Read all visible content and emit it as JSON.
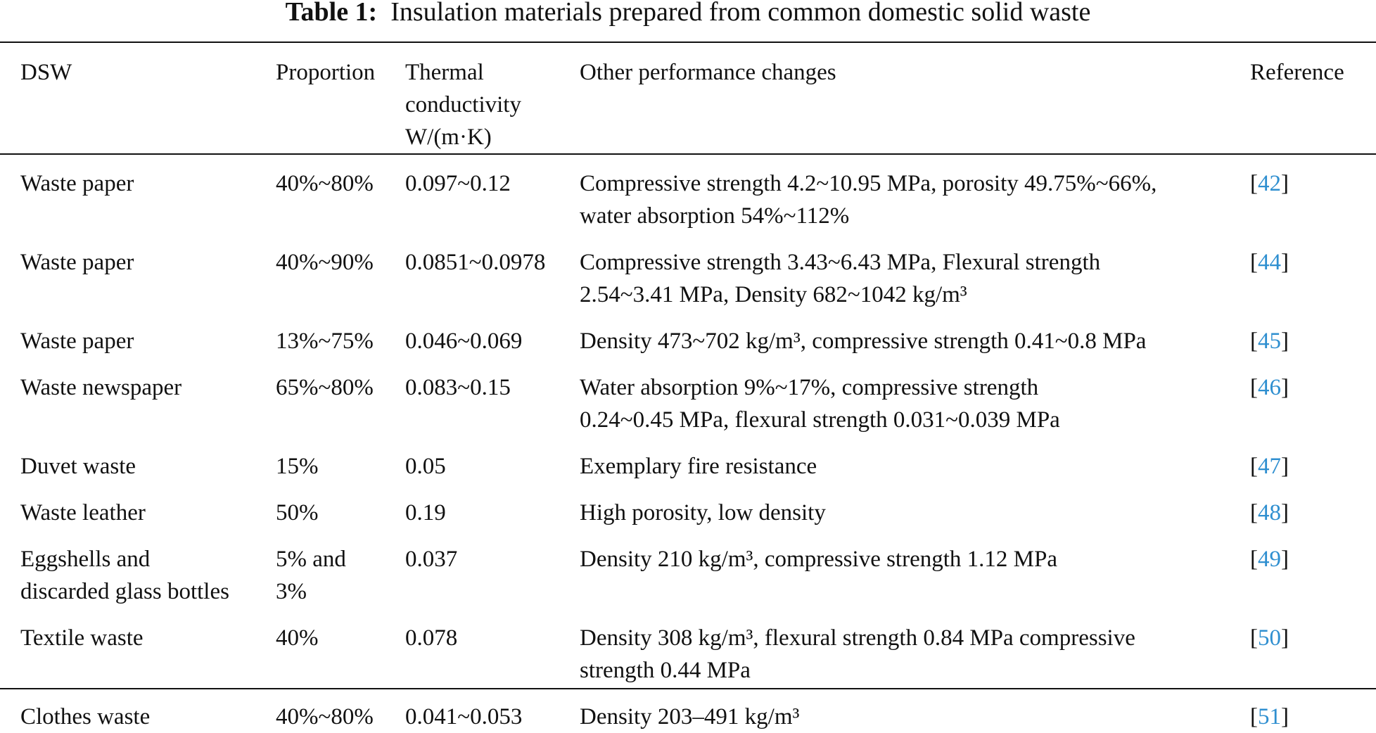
{
  "caption": {
    "label": "Table 1:",
    "title": "Insulation materials prepared from common domestic solid waste"
  },
  "headers": {
    "dsw": "DSW",
    "proportion": "Proportion",
    "thermal_1": "Thermal",
    "thermal_2": "conductivity",
    "thermal_3": "W/(m·K)",
    "other": "Other performance changes",
    "reference": "Reference"
  },
  "rows": [
    {
      "dsw": [
        "Waste paper"
      ],
      "proportion": [
        "40%~80%"
      ],
      "thermal": "0.097~0.12",
      "other": [
        "Compressive strength 4.2~10.95 MPa, porosity 49.75%~66%,",
        "water absorption 54%~112%"
      ],
      "ref": "42"
    },
    {
      "dsw": [
        "Waste paper"
      ],
      "proportion": [
        "40%~90%"
      ],
      "thermal": "0.0851~0.0978",
      "other": [
        "Compressive strength 3.43~6.43 MPa, Flexural strength",
        "2.54~3.41 MPa, Density 682~1042 kg/m³"
      ],
      "ref": "44"
    },
    {
      "dsw": [
        "Waste paper"
      ],
      "proportion": [
        "13%~75%"
      ],
      "thermal": "0.046~0.069",
      "other": [
        "Density 473~702 kg/m³, compressive strength 0.41~0.8 MPa"
      ],
      "ref": "45"
    },
    {
      "dsw": [
        "Waste newspaper"
      ],
      "proportion": [
        "65%~80%"
      ],
      "thermal": "0.083~0.15",
      "other": [
        "Water absorption 9%~17%, compressive strength",
        "0.24~0.45 MPa, flexural strength 0.031~0.039 MPa"
      ],
      "ref": "46"
    },
    {
      "dsw": [
        "Duvet waste"
      ],
      "proportion": [
        "15%"
      ],
      "thermal": "0.05",
      "other": [
        "Exemplary fire resistance"
      ],
      "ref": "47"
    },
    {
      "dsw": [
        "Waste leather"
      ],
      "proportion": [
        "50%"
      ],
      "thermal": "0.19",
      "other": [
        "High porosity, low density"
      ],
      "ref": "48"
    },
    {
      "dsw": [
        "Eggshells and",
        "discarded glass bottles"
      ],
      "proportion": [
        "5% and",
        "3%"
      ],
      "thermal": "0.037",
      "other": [
        "Density 210 kg/m³, compressive strength 1.12 MPa"
      ],
      "ref": "49"
    },
    {
      "dsw": [
        "Textile waste"
      ],
      "proportion": [
        "40%"
      ],
      "thermal": "0.078",
      "other": [
        "Density 308 kg/m³, flexural strength 0.84 MPa compressive",
        "strength 0.44 MPa"
      ],
      "ref": "50"
    },
    {
      "dsw": [
        "Clothes waste"
      ],
      "proportion": [
        "40%~80%"
      ],
      "thermal": "0.041~0.053",
      "other": [
        "Density 203–491 kg/m³"
      ],
      "ref": "51"
    }
  ]
}
